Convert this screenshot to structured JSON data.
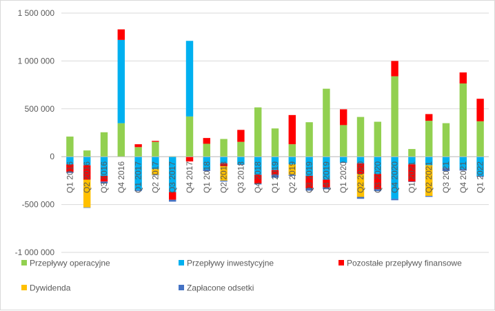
{
  "chart_data": {
    "type": "bar",
    "stacked": true,
    "title": "",
    "xlabel": "",
    "ylabel": "",
    "ylim": [
      -1000000,
      1500000
    ],
    "yticks": [
      -1000000,
      -500000,
      0,
      500000,
      1000000,
      1500000
    ],
    "ytick_labels": [
      "-1 000 000",
      "-500 000",
      "0",
      "500 000",
      "1 000 000",
      "1 500 000"
    ],
    "grid": true,
    "legend_position": "bottom",
    "categories": [
      "Q1 2016",
      "Q2 2016",
      "Q3 2016",
      "Q4 2016",
      "Q1 2017",
      "Q2 2017",
      "Q3 2017",
      "Q4 2017",
      "Q1 2018",
      "Q2 2018",
      "Q3 2018",
      "Q4 2018",
      "Q1 2019",
      "Q2 2019",
      "Q3 2019",
      "Q4 2019",
      "Q1 2020",
      "Q2 2020",
      "Q3 2020",
      "Q4 2020",
      "Q1 2021",
      "Q2 2021",
      "Q3 2021",
      "Q4 2021",
      "Q1 2022"
    ],
    "series": [
      {
        "name": "Przepływy operacyjne",
        "color": "#92d050",
        "values": [
          210000,
          65000,
          255000,
          350000,
          100000,
          155000,
          5000,
          420000,
          135000,
          185000,
          155000,
          515000,
          295000,
          130000,
          360000,
          710000,
          330000,
          415000,
          365000,
          840000,
          80000,
          375000,
          350000,
          765000,
          370000
        ]
      },
      {
        "name": "Przepływy inwestycyjne",
        "color": "#00b0f0",
        "values": [
          -80000,
          -90000,
          -200000,
          870000,
          -350000,
          -130000,
          -370000,
          790000,
          -135000,
          -70000,
          -80000,
          -190000,
          -140000,
          -80000,
          -200000,
          -240000,
          -60000,
          -70000,
          -180000,
          -440000,
          -80000,
          -90000,
          -120000,
          -130000,
          -200000
        ]
      },
      {
        "name": "Pozostałe przepływy finansowe",
        "color": "#ff0000",
        "values": [
          -80000,
          -150000,
          -60000,
          110000,
          30000,
          10000,
          -80000,
          -50000,
          60000,
          -30000,
          125000,
          -90000,
          -50000,
          305000,
          -130000,
          -80000,
          165000,
          -110000,
          -160000,
          160000,
          -180000,
          70000,
          0,
          115000,
          235000
        ]
      },
      {
        "name": "Dywidenda",
        "color": "#ffc000",
        "values": [
          0,
          -290000,
          0,
          0,
          0,
          -60000,
          0,
          0,
          0,
          -150000,
          0,
          0,
          0,
          -110000,
          0,
          0,
          0,
          -240000,
          0,
          0,
          0,
          -320000,
          0,
          0,
          0
        ]
      },
      {
        "name": "Zapłacone odsetki",
        "color": "#4472c4",
        "values": [
          -10000,
          -5000,
          -20000,
          0,
          -10000,
          -5000,
          -20000,
          0,
          -15000,
          -10000,
          -5000,
          -10000,
          -30000,
          -10000,
          -25000,
          -20000,
          -5000,
          -20000,
          -20000,
          -15000,
          -5000,
          -10000,
          -30000,
          -15000,
          -10000
        ]
      }
    ]
  }
}
